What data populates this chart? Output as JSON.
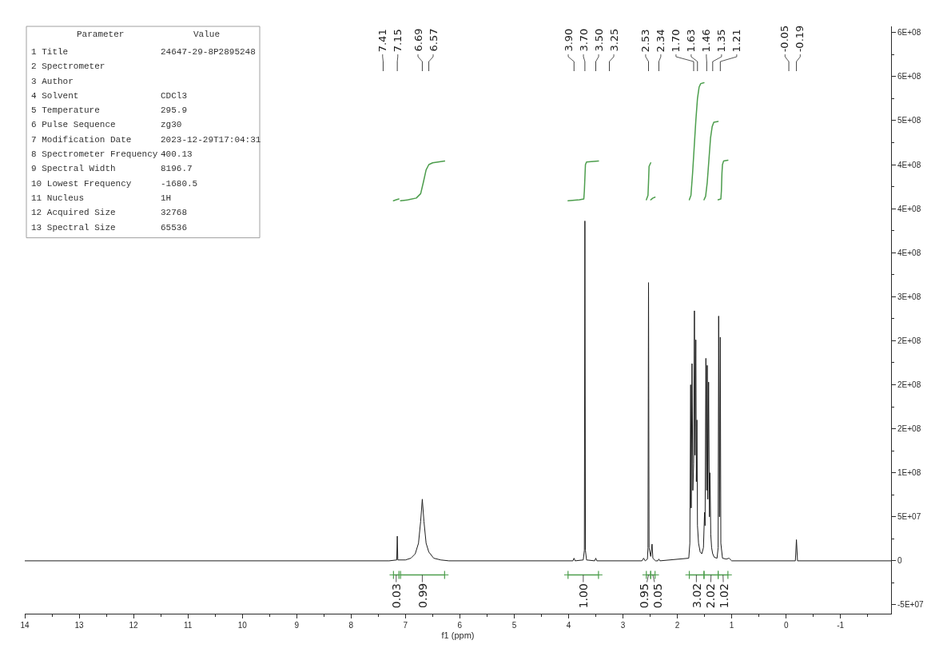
{
  "chart_data": [
    {
      "type": "other",
      "annotations": [
        "Parameter",
        "Value",
        "1 Title",
        "24647-29-8P2895248",
        "2 Spectrometer",
        null,
        "3 Author",
        null,
        "4 Solvent",
        "CDCl3",
        "5 Temperature",
        "295.9",
        "6 Pulse Sequence",
        "zg30",
        "7 Modification Date",
        "2023-12-29T17:04:31",
        "8 Spectrometer Frequency",
        "400.13",
        "9 Spectral Width",
        "8196.7",
        "10 Lowest Frequency",
        "-1680.5",
        "11 Nucleus",
        "1H",
        "12 Acquired Size",
        "32768",
        "13 Spectral Size",
        "65536"
      ]
    },
    {
      "type": "line",
      "xlabel": "f1 (ppm)",
      "xlim": [
        14,
        -1.93
      ],
      "xticks": [
        14,
        {
          "value": 13.5,
          "label": null
        },
        13,
        {
          "value": 12.5,
          "label": null
        },
        12,
        {
          "value": 11.5,
          "label": null
        },
        11,
        {
          "value": 10.5,
          "label": null
        },
        10,
        {
          "value": 9.5,
          "label": null
        },
        9,
        {
          "value": 8.5,
          "label": null
        },
        8,
        {
          "value": 7.5,
          "label": null
        },
        7,
        {
          "value": 6.5,
          "label": null
        },
        6,
        {
          "value": 5.5,
          "label": null
        },
        5,
        {
          "value": 4.5,
          "label": null
        },
        4,
        {
          "value": 3.5,
          "label": null
        },
        3,
        {
          "value": 2.5,
          "label": null
        },
        2,
        {
          "value": 1.5,
          "label": null
        },
        1,
        {
          "value": 0.5,
          "label": null
        },
        0,
        {
          "value": -0.5,
          "label": null
        },
        -1,
        {
          "value": -1.5,
          "label": null
        }
      ],
      "ylim": [
        -60000000.0,
        607000000.0
      ],
      "yticks": [
        {
          "value": -50000000.0,
          "label": "-5E+07"
        },
        {
          "value": -25000000.0,
          "label": null
        },
        0,
        {
          "value": 25000000.0,
          "label": null
        },
        {
          "value": 50000000.0,
          "label": "5E+07"
        },
        {
          "value": 75000000.0,
          "label": null
        },
        {
          "value": 100000000.0,
          "label": "1E+08"
        },
        {
          "value": 125000000.0,
          "label": null
        },
        {
          "value": 150000000.0,
          "label": "2E+08"
        },
        {
          "value": 175000000.0,
          "label": null
        },
        {
          "value": 200000000.0,
          "label": "2E+08"
        },
        {
          "value": 225000000.0,
          "label": null
        },
        {
          "value": 250000000.0,
          "label": "2E+08"
        },
        {
          "value": 275000000.0,
          "label": null
        },
        {
          "value": 300000000.0,
          "label": "3E+08"
        },
        {
          "value": 325000000.0,
          "label": null
        },
        {
          "value": 350000000.0,
          "label": "4E+08"
        },
        {
          "value": 375000000.0,
          "label": null
        },
        {
          "value": 400000000.0,
          "label": "4E+08"
        },
        {
          "value": 425000000.0,
          "label": null
        },
        {
          "value": 450000000.0,
          "label": "4E+08"
        },
        {
          "value": 475000000.0,
          "label": null
        },
        {
          "value": 500000000.0,
          "label": "5E+08"
        },
        {
          "value": 525000000.0,
          "label": null
        },
        {
          "value": 550000000.0,
          "label": "6E+08"
        },
        {
          "value": 575000000.0,
          "label": null
        },
        {
          "value": 600000000.0,
          "label": "6E+08"
        }
      ],
      "ref_lines": [
        {
          "axis": "x",
          "value": 7.41,
          "label": "7.41"
        },
        {
          "axis": "x",
          "value": 7.15,
          "label": "7.15"
        },
        {
          "axis": "x",
          "value": 6.69,
          "label": "6.69"
        },
        {
          "axis": "x",
          "value": 6.57,
          "label": "6.57"
        },
        {
          "axis": "x",
          "value": 3.9,
          "label": "3.90"
        },
        {
          "axis": "x",
          "value": 3.7,
          "label": "3.70"
        },
        {
          "axis": "x",
          "value": 3.5,
          "label": "3.50"
        },
        {
          "axis": "x",
          "value": 3.25,
          "label": "3.25"
        },
        {
          "axis": "x",
          "value": 2.53,
          "label": "2.53"
        },
        {
          "axis": "x",
          "value": 2.34,
          "label": "2.34"
        },
        {
          "axis": "x",
          "value": 1.7,
          "label": "1.70"
        },
        {
          "axis": "x",
          "value": 1.63,
          "label": "1.63"
        },
        {
          "axis": "x",
          "value": 1.46,
          "label": "1.46"
        },
        {
          "axis": "x",
          "value": 1.35,
          "label": "1.35"
        },
        {
          "axis": "x",
          "value": 1.21,
          "label": "1.21"
        },
        {
          "axis": "x",
          "value": -0.05,
          "label": "-0.05"
        },
        {
          "axis": "x",
          "value": -0.19,
          "label": "-0.19"
        }
      ],
      "annotations": [
        {
          "text": "0.03",
          "x": 7.17,
          "y": -16000000.0
        },
        {
          "text": "0.99",
          "x": 6.69,
          "y": -16000000.0
        },
        {
          "text": "1.00",
          "x": 3.73,
          "y": -16000000.0
        },
        {
          "text": "0.95",
          "x": 2.53,
          "y": -16000000.0
        },
        {
          "text": "0.05",
          "x": 2.45,
          "y": -16000000.0
        },
        {
          "text": "3.02",
          "x": 1.65,
          "y": -16000000.0
        },
        {
          "text": "2.02",
          "x": 1.38,
          "y": -16000000.0
        },
        {
          "text": "1.02",
          "x": 1.16,
          "y": -16000000.0
        }
      ],
      "series": [
        {
          "color": "#1e1e1e",
          "x": [
            14.0,
            7.3,
            7.16,
            7.15,
            7.14,
            7.0,
            6.9,
            6.82,
            6.76,
            6.72,
            6.69,
            6.66,
            6.62,
            6.57,
            6.48,
            6.35,
            6.2,
            3.92,
            3.9,
            3.88,
            3.73,
            3.71,
            3.7,
            3.69,
            3.67,
            3.52,
            3.5,
            3.48,
            2.65,
            2.62,
            2.59,
            2.55,
            2.54,
            2.53,
            2.52,
            2.49,
            2.465,
            2.45,
            2.4,
            2.36,
            2.34,
            2.32,
            1.79,
            1.77,
            1.755,
            1.745,
            1.73,
            1.715,
            1.7,
            1.686,
            1.675,
            1.66,
            1.65,
            1.64,
            1.63,
            1.61,
            1.58,
            1.55,
            1.52,
            1.5,
            1.49,
            1.475,
            1.46,
            1.45,
            1.44,
            1.425,
            1.41,
            1.4,
            1.385,
            1.37,
            1.35,
            1.32,
            1.27,
            1.25,
            1.24,
            1.225,
            1.21,
            1.2,
            1.17,
            1.1,
            1.05,
            1.0,
            -0.17,
            -0.19,
            -0.21,
            -1.93
          ],
          "values": [
            0,
            0,
            1000000.0,
            28000000.0,
            1000000.0,
            1000000.0,
            3000000.0,
            8000000.0,
            20000000.0,
            45000000.0,
            70000000.0,
            45000000.0,
            20000000.0,
            10000000.0,
            3000000.0,
            1000000.0,
            0,
            0,
            3000000.0,
            0,
            1000000.0,
            12000000.0,
            386000000.0,
            12000000.0,
            1000000.0,
            0,
            3000000.0,
            0,
            0,
            3000000.0,
            0,
            2000000.0,
            15000000.0,
            316000000.0,
            15000000.0,
            5000000.0,
            19000000.0,
            3000000.0,
            0,
            0,
            2000000.0,
            0,
            3000000.0,
            20000000.0,
            200000000.0,
            60000000.0,
            224000000.0,
            80000000.0,
            110000000.0,
            284000000.0,
            120000000.0,
            251000000.0,
            90000000.0,
            160000000.0,
            40000000.0,
            20000000.0,
            10000000.0,
            8000000.0,
            15000000.0,
            55000000.0,
            40000000.0,
            230000000.0,
            80000000.0,
            222000000.0,
            70000000.0,
            203000000.0,
            50000000.0,
            100000000.0,
            30000000.0,
            15000000.0,
            8000000.0,
            4000000.0,
            3000000.0,
            15000000.0,
            278000000.0,
            50000000.0,
            254000000.0,
            20000000.0,
            3000000.0,
            2000000.0,
            3000000.0,
            0,
            0,
            24000000.0,
            0,
            0
          ]
        },
        {
          "color": "#4e9f4e",
          "x": [
            7.22,
            7.17,
            7.12
          ],
          "values": [
            409000000.0,
            410000000.0,
            411000000.0
          ]
        },
        {
          "color": "#4c9d4c",
          "x": [
            7.09,
            6.95,
            6.8,
            6.72,
            6.67,
            6.62,
            6.57,
            6.5,
            6.4,
            6.28
          ],
          "values": [
            409000000.0,
            410000000.0,
            412000000.0,
            417000000.0,
            430000000.0,
            444000000.0,
            450000000.0,
            452000000.0,
            453000000.0,
            454000000.0
          ]
        },
        {
          "color": "#4d9e4d",
          "x": [
            4.01,
            3.8,
            3.72,
            3.71,
            3.7,
            3.69,
            3.67,
            3.45
          ],
          "values": [
            409000000.0,
            410000000.0,
            411000000.0,
            420000000.0,
            435000000.0,
            450000000.0,
            453000000.0,
            454000000.0
          ]
        },
        {
          "color": "#4d9e4d",
          "x": [
            2.57,
            2.54,
            2.53,
            2.52,
            2.49
          ],
          "values": [
            410000000.0,
            415000000.0,
            430000000.0,
            448000000.0,
            452000000.0
          ]
        },
        {
          "color": "#4f9f4e",
          "x": [
            2.49,
            2.45,
            2.41
          ],
          "values": [
            410000000.0,
            412000000.0,
            413000000.0
          ]
        },
        {
          "color": "#4c9f4d",
          "x": [
            1.78,
            1.75,
            1.72,
            1.69,
            1.66,
            1.63,
            1.6,
            1.57,
            1.51
          ],
          "values": [
            410000000.0,
            415000000.0,
            440000000.0,
            470000000.0,
            500000000.0,
            525000000.0,
            538000000.0,
            542000000.0,
            543000000.0
          ]
        },
        {
          "color": "#4e9d4d",
          "x": [
            1.51,
            1.48,
            1.45,
            1.42,
            1.39,
            1.36,
            1.33,
            1.25
          ],
          "values": [
            410000000.0,
            414000000.0,
            430000000.0,
            455000000.0,
            480000000.0,
            493000000.0,
            498000000.0,
            499000000.0
          ]
        },
        {
          "color": "#4d9d4e",
          "x": [
            1.25,
            1.2,
            1.19,
            1.18,
            1.17,
            1.15,
            1.07
          ],
          "values": [
            410000000.0,
            411000000.0,
            420000000.0,
            440000000.0,
            450000000.0,
            454000000.0,
            455000000.0
          ]
        },
        {
          "color": "#4d9e4d",
          "marker": "cross",
          "x": [
            7.22,
            7.12
          ],
          "values": [
            -16000000.0,
            -16000000.0
          ]
        },
        {
          "color": "#4d9e4d",
          "marker": "cross",
          "x": [
            7.09,
            6.28
          ],
          "values": [
            -16000000.0,
            -16000000.0
          ]
        },
        {
          "color": "#4d9e4d",
          "marker": "cross",
          "x": [
            4.01,
            3.45
          ],
          "values": [
            -16000000.0,
            -16000000.0
          ]
        },
        {
          "color": "#4d9e4d",
          "marker": "cross",
          "x": [
            2.57,
            2.49
          ],
          "values": [
            -16000000.0,
            -16000000.0
          ]
        },
        {
          "color": "#4d9e4d",
          "marker": "cross",
          "x": [
            2.49,
            2.41
          ],
          "values": [
            -16000000.0,
            -16000000.0
          ]
        },
        {
          "color": "#4d9e4d",
          "marker": "cross",
          "x": [
            1.78,
            1.51
          ],
          "values": [
            -16000000.0,
            -16000000.0
          ]
        },
        {
          "color": "#4d9e4d",
          "marker": "cross",
          "x": [
            1.51,
            1.25
          ],
          "values": [
            -16000000.0,
            -16000000.0
          ]
        },
        {
          "color": "#4d9e4d",
          "marker": "cross",
          "x": [
            1.25,
            1.07
          ],
          "values": [
            -16000000.0,
            -16000000.0
          ]
        }
      ]
    }
  ]
}
